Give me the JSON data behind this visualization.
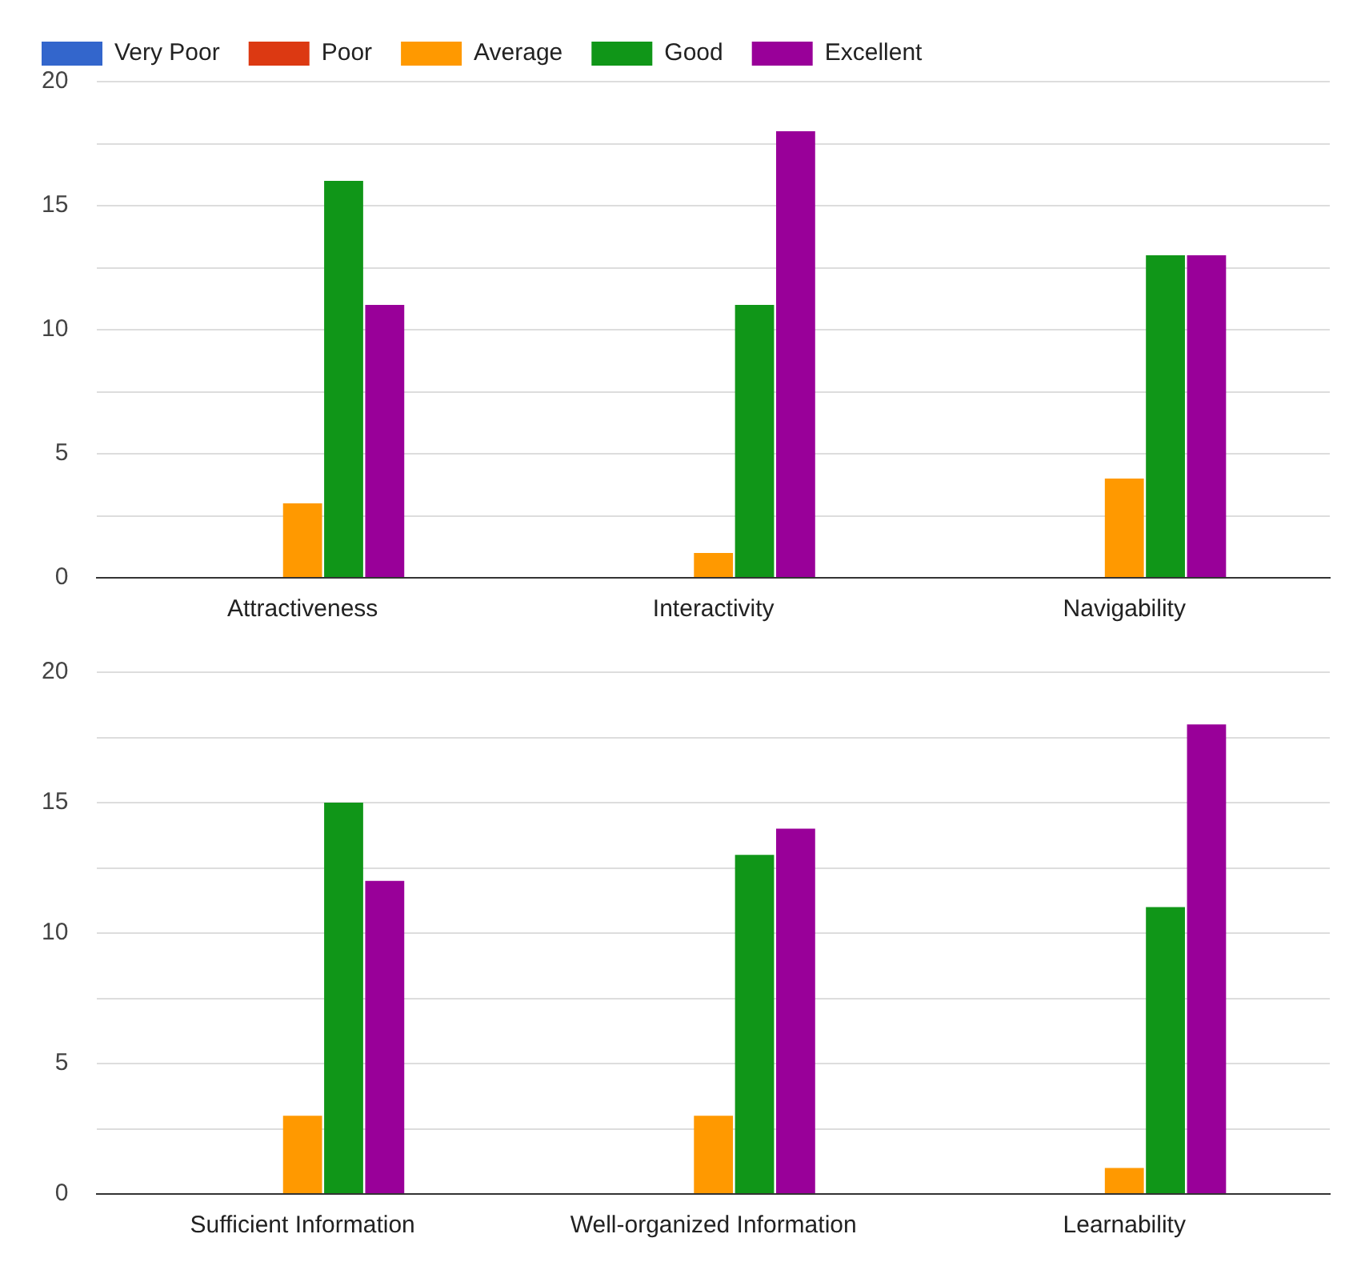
{
  "chart_data": [
    {
      "type": "bar",
      "categories": [
        "Attractiveness",
        "Interactivity",
        "Navigability"
      ],
      "series": [
        {
          "name": "Very Poor",
          "color": "#3366cc",
          "values": [
            0,
            0,
            0
          ]
        },
        {
          "name": "Poor",
          "color": "#dc3912",
          "values": [
            0,
            0,
            0
          ]
        },
        {
          "name": "Average",
          "color": "#ff9900",
          "values": [
            3,
            1,
            4
          ]
        },
        {
          "name": "Good",
          "color": "#109618",
          "values": [
            16,
            11,
            13
          ]
        },
        {
          "name": "Excellent",
          "color": "#990099",
          "values": [
            11,
            18,
            13
          ]
        }
      ],
      "ylim": [
        0,
        20
      ],
      "yticks": [
        0,
        {
          "value": 2.5,
          "label": null
        },
        5,
        {
          "value": 7.5,
          "label": null
        },
        10,
        {
          "value": 12.5,
          "label": null
        },
        15,
        {
          "value": 17.5,
          "label": null
        },
        20
      ],
      "grid": "y",
      "legend": "top"
    },
    {
      "type": "bar",
      "categories": [
        "Sufficient Information",
        "Well-organized Information",
        "Learnability"
      ],
      "series": [
        {
          "color": "#3366cc",
          "values": [
            0,
            0,
            0
          ]
        },
        {
          "color": "#dc3912",
          "values": [
            0,
            0,
            0
          ]
        },
        {
          "color": "#ff9900",
          "values": [
            3,
            3,
            1
          ]
        },
        {
          "color": "#109618",
          "values": [
            15,
            13,
            11
          ]
        },
        {
          "color": "#990099",
          "values": [
            12,
            14,
            18
          ]
        }
      ],
      "ylim": [
        0,
        20
      ],
      "yticks": [
        0,
        {
          "value": 2.5,
          "label": null
        },
        5,
        {
          "value": 7.5,
          "label": null
        },
        10,
        {
          "value": 12.5,
          "label": null
        },
        15,
        {
          "value": 17.5,
          "label": null
        },
        20
      ],
      "grid": "y",
      "legend": false
    }
  ]
}
